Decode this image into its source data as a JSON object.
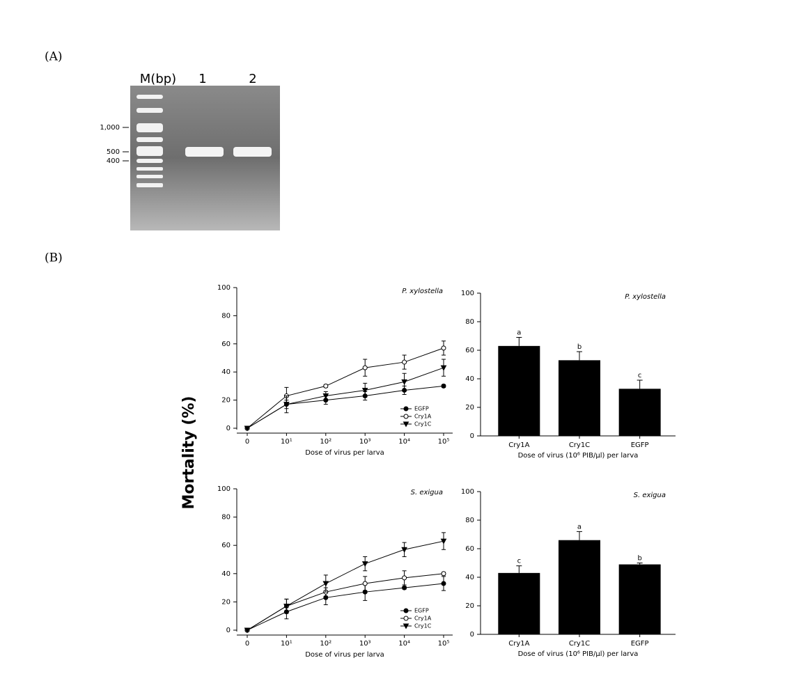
{
  "panel_a": {
    "label": "(A)",
    "lanes": [
      "M(bp)",
      "1",
      "2"
    ],
    "markers": [
      "1,000",
      "500",
      "400"
    ]
  },
  "panel_b": {
    "label": "(B)",
    "ylabel": "Mortality (%)"
  },
  "chart_data": [
    {
      "type": "line",
      "annotation": "P. xylostella",
      "xlabel": "Dose of virus per larva",
      "categories": [
        "0",
        "10¹",
        "10²",
        "10³",
        "10⁴",
        "10⁵"
      ],
      "ylim": [
        0,
        100
      ],
      "yticks": [
        0,
        20,
        40,
        60,
        80,
        100
      ],
      "legend": "lower right",
      "series": [
        {
          "name": "EGFP",
          "color": "#000000",
          "marker": "filled-circle",
          "values": [
            0,
            17,
            20,
            23,
            27,
            30
          ],
          "errors": [
            0,
            3,
            3,
            3,
            3,
            1
          ]
        },
        {
          "name": "Cry1A",
          "color": "#000000",
          "marker": "open-circle",
          "values": [
            0,
            23,
            30,
            43,
            47,
            57
          ],
          "errors": [
            0,
            6,
            1,
            6,
            5,
            5
          ]
        },
        {
          "name": "Cry1C",
          "color": "#000000",
          "marker": "triangle-down",
          "values": [
            0,
            17,
            23,
            27,
            33,
            43
          ],
          "errors": [
            0,
            6,
            3,
            5,
            6,
            6
          ]
        }
      ]
    },
    {
      "type": "bar",
      "annotation": "P. xylostella",
      "xlabel": "Dose of virus (10⁶ PIB/μl) per larva",
      "categories": [
        "Cry1A",
        "Cry1C",
        "EGFP"
      ],
      "values": [
        63,
        53,
        33
      ],
      "errors": [
        6,
        6,
        6
      ],
      "letters": [
        "a",
        "b",
        "c"
      ],
      "color": "#000000",
      "ylim": [
        0,
        100
      ],
      "yticks": [
        0,
        20,
        40,
        60,
        80,
        100
      ]
    },
    {
      "type": "line",
      "annotation": "S. exigua",
      "xlabel": "Dose of virus per larva",
      "categories": [
        "0",
        "10¹",
        "10²",
        "10³",
        "10⁴",
        "10⁵"
      ],
      "ylim": [
        0,
        100
      ],
      "yticks": [
        0,
        20,
        40,
        60,
        80,
        100
      ],
      "legend": "lower right",
      "series": [
        {
          "name": "EGFP",
          "color": "#000000",
          "marker": "filled-circle",
          "values": [
            0,
            13,
            23,
            27,
            30,
            33
          ],
          "errors": [
            0,
            5,
            5,
            6,
            1,
            5
          ]
        },
        {
          "name": "Cry1A",
          "color": "#000000",
          "marker": "open-circle",
          "values": [
            0,
            17,
            27,
            33,
            37,
            40
          ],
          "errors": [
            0,
            5,
            3,
            5,
            5,
            1
          ]
        },
        {
          "name": "Cry1C",
          "color": "#000000",
          "marker": "triangle-down",
          "values": [
            0,
            17,
            33,
            47,
            57,
            63
          ],
          "errors": [
            0,
            5,
            6,
            5,
            5,
            6
          ]
        }
      ]
    },
    {
      "type": "bar",
      "annotation": "S. exigua",
      "xlabel": "Dose of virus (10⁶ PIB/μl) per larva",
      "categories": [
        "Cry1A",
        "Cry1C",
        "EGFP"
      ],
      "values": [
        43,
        66,
        49
      ],
      "errors": [
        5,
        6,
        1
      ],
      "letters": [
        "c",
        "a",
        "b"
      ],
      "color": "#000000",
      "ylim": [
        0,
        100
      ],
      "yticks": [
        0,
        20,
        40,
        60,
        80,
        100
      ]
    }
  ]
}
